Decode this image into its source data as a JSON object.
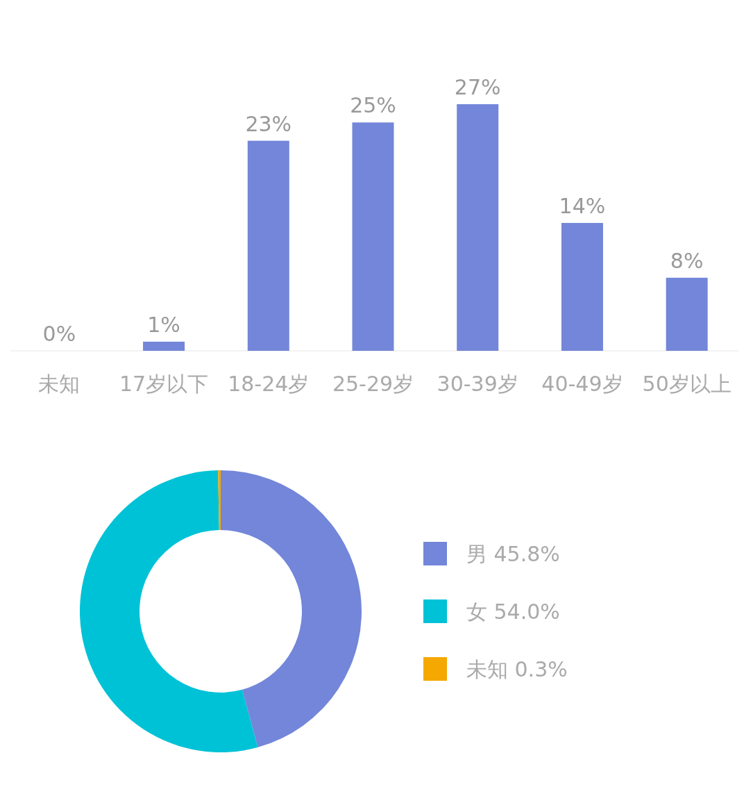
{
  "chart_data": [
    {
      "type": "bar",
      "categories": [
        "未知",
        "17岁以下",
        "18-24岁",
        "25-29岁",
        "30-39岁",
        "40-49岁",
        "50岁以上"
      ],
      "values": [
        0,
        1,
        23,
        25,
        27,
        14,
        8
      ],
      "value_labels": [
        "0%",
        "1%",
        "23%",
        "25%",
        "27%",
        "14%",
        "8%"
      ],
      "color": "#7386d9",
      "grid": false
    },
    {
      "type": "donut",
      "categories": [
        "男",
        "女",
        "未知"
      ],
      "values": [
        45.8,
        54.0,
        0.3
      ],
      "value_labels": [
        "45.8%",
        "54.0%",
        "0.3%"
      ],
      "colors": [
        "#7386d9",
        "#00c2d6",
        "#f5a800"
      ],
      "legend": "right"
    }
  ]
}
